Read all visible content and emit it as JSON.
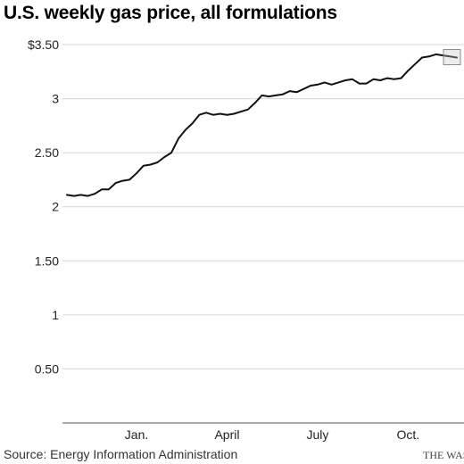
{
  "chart_data": {
    "type": "line",
    "title": "U.S. weekly gas price, all formulations",
    "xlabel": "",
    "ylabel": "",
    "ylim": [
      0,
      3.5
    ],
    "y_ticks": [
      {
        "value": 3.5,
        "label": "$3.50"
      },
      {
        "value": 3.0,
        "label": "3"
      },
      {
        "value": 2.5,
        "label": "2.50"
      },
      {
        "value": 2.0,
        "label": "2"
      },
      {
        "value": 1.5,
        "label": "1.50"
      },
      {
        "value": 1.0,
        "label": "1"
      },
      {
        "value": 0.5,
        "label": "0.50"
      }
    ],
    "x_ticks": [
      {
        "week": 10,
        "label": "Jan."
      },
      {
        "week": 23,
        "label": "April"
      },
      {
        "week": 36,
        "label": "July"
      },
      {
        "week": 49,
        "label": "Oct."
      }
    ],
    "grid": true,
    "highlight_last_point": true,
    "values": [
      2.11,
      2.1,
      2.11,
      2.1,
      2.12,
      2.16,
      2.16,
      2.22,
      2.24,
      2.25,
      2.31,
      2.38,
      2.39,
      2.41,
      2.46,
      2.5,
      2.63,
      2.71,
      2.77,
      2.85,
      2.87,
      2.85,
      2.86,
      2.85,
      2.86,
      2.88,
      2.9,
      2.96,
      3.03,
      3.02,
      3.03,
      3.04,
      3.07,
      3.06,
      3.09,
      3.12,
      3.13,
      3.15,
      3.13,
      3.15,
      3.17,
      3.18,
      3.14,
      3.14,
      3.18,
      3.17,
      3.19,
      3.18,
      3.19,
      3.26,
      3.32,
      3.38,
      3.39,
      3.41,
      3.4,
      3.39,
      3.38
    ]
  },
  "source": "Source: Energy Information Administration",
  "credit": "THE WASHINGTON POST"
}
